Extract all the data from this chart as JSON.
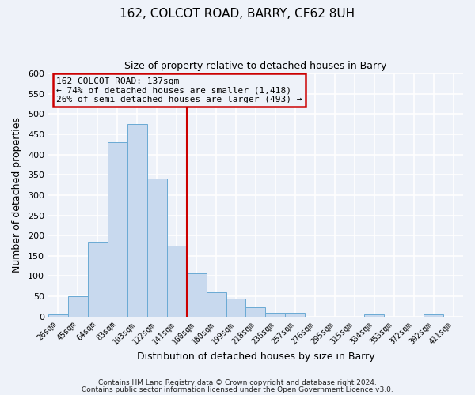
{
  "title": "162, COLCOT ROAD, BARRY, CF62 8UH",
  "subtitle": "Size of property relative to detached houses in Barry",
  "xlabel": "Distribution of detached houses by size in Barry",
  "ylabel": "Number of detached properties",
  "bar_labels": [
    "26sqm",
    "45sqm",
    "64sqm",
    "83sqm",
    "103sqm",
    "122sqm",
    "141sqm",
    "160sqm",
    "180sqm",
    "199sqm",
    "218sqm",
    "238sqm",
    "257sqm",
    "276sqm",
    "295sqm",
    "315sqm",
    "334sqm",
    "353sqm",
    "372sqm",
    "392sqm",
    "411sqm"
  ],
  "bar_values": [
    5,
    50,
    185,
    430,
    475,
    340,
    175,
    107,
    60,
    45,
    23,
    10,
    10,
    0,
    0,
    0,
    5,
    0,
    0,
    5,
    0
  ],
  "bar_color": "#c8d9ee",
  "bar_edge_color": "#6aaad4",
  "vline_x": 6.5,
  "vline_color": "#cc0000",
  "ylim": [
    0,
    600
  ],
  "yticks": [
    0,
    50,
    100,
    150,
    200,
    250,
    300,
    350,
    400,
    450,
    500,
    550,
    600
  ],
  "annotation_title": "162 COLCOT ROAD: 137sqm",
  "annotation_line1": "← 74% of detached houses are smaller (1,418)",
  "annotation_line2": "26% of semi-detached houses are larger (493) →",
  "annotation_box_color": "#cc0000",
  "footer_line1": "Contains HM Land Registry data © Crown copyright and database right 2024.",
  "footer_line2": "Contains public sector information licensed under the Open Government Licence v3.0.",
  "background_color": "#eef2f9",
  "grid_color": "#ffffff"
}
